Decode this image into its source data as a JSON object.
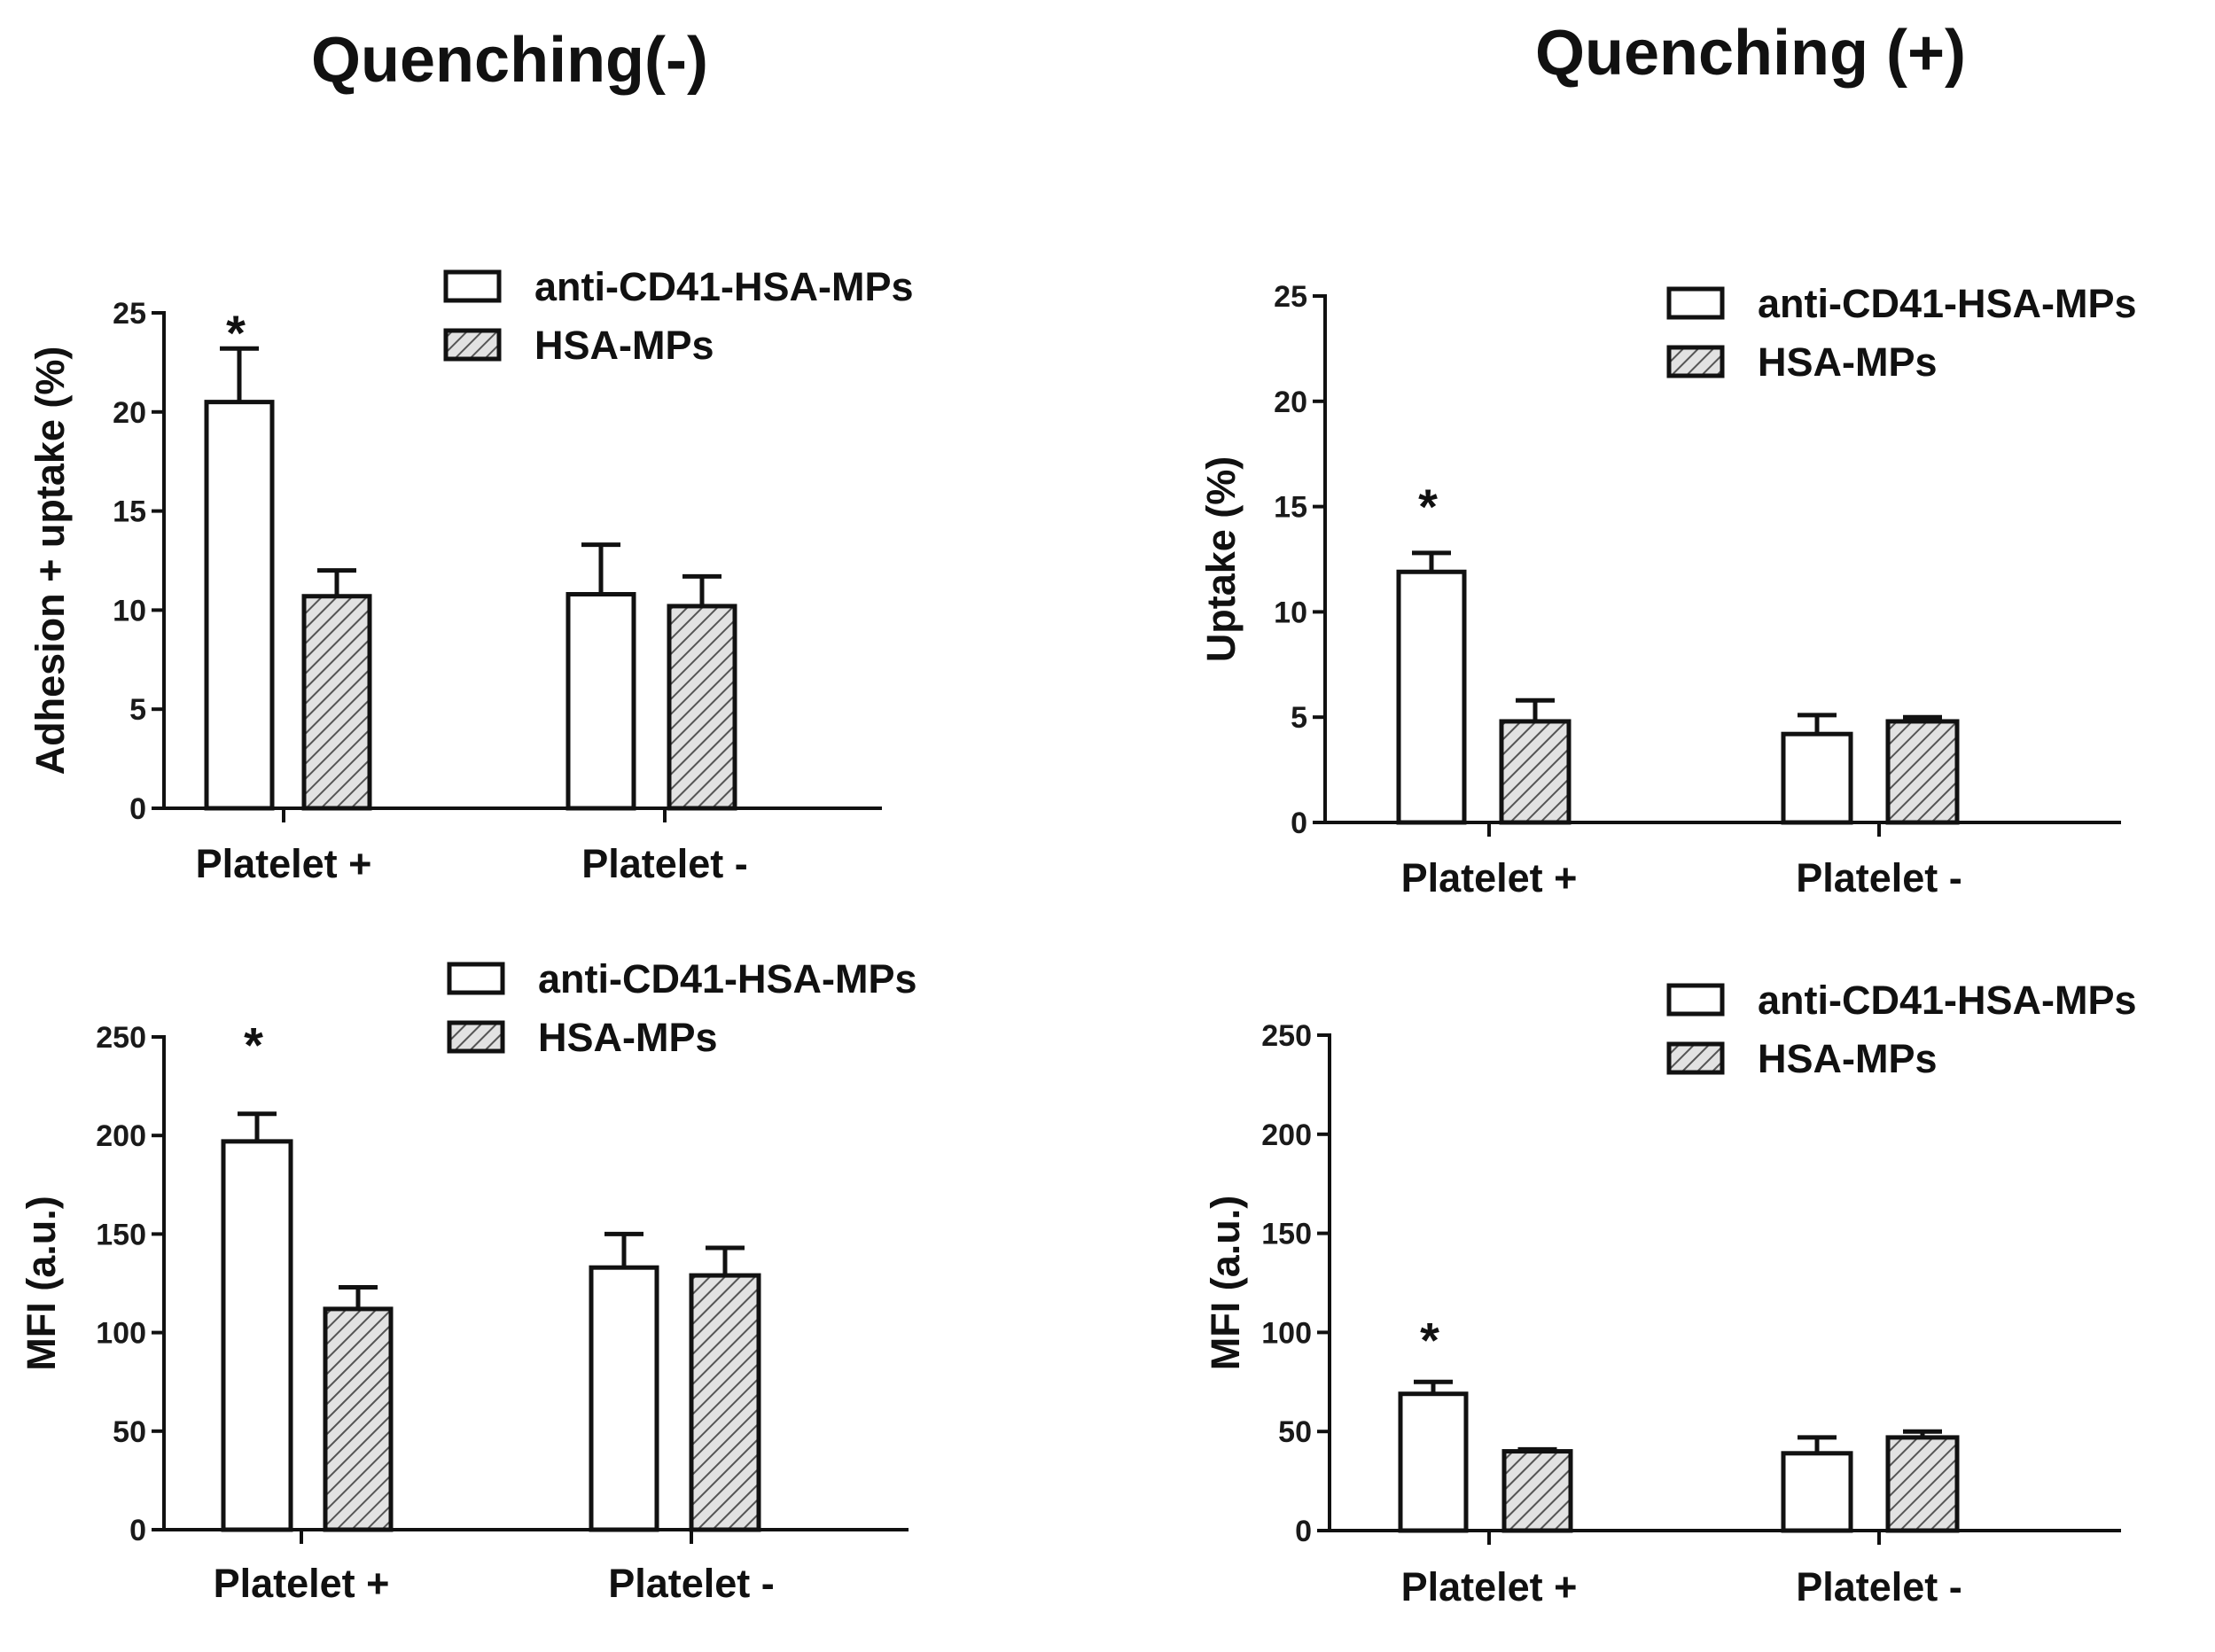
{
  "titles": {
    "left": "Quenching(-)",
    "right": "Quenching (+)"
  },
  "chart_data": [
    {
      "id": "left-top",
      "type": "bar",
      "title": "",
      "xlabel": "",
      "ylabel": "Adhesion + uptake (%)",
      "ylim": [
        0,
        25
      ],
      "ticks": [
        0,
        5,
        10,
        15,
        20,
        25
      ],
      "tick_labels": [
        "0",
        "5",
        "10",
        "15",
        "20",
        "25"
      ],
      "categories": [
        "Platelet +",
        "Platelet -"
      ],
      "series": [
        {
          "name": "anti-CD41-HSA-MPs",
          "values": [
            20.5,
            10.8
          ],
          "errors": [
            2.7,
            2.5
          ],
          "fill": "open"
        },
        {
          "name": "HSA-MPs",
          "values": [
            10.7,
            10.2
          ],
          "errors": [
            1.3,
            1.5
          ],
          "fill": "hatch"
        }
      ],
      "annotations": [
        {
          "text": "*",
          "category": 0,
          "series": 0
        }
      ],
      "legend_position": "top-right"
    },
    {
      "id": "right-top",
      "type": "bar",
      "title": "",
      "xlabel": "",
      "ylabel": "Uptake (%)",
      "ylim": [
        0,
        25
      ],
      "ticks": [
        0,
        5,
        10,
        15,
        20,
        25
      ],
      "tick_labels": [
        "0",
        "5",
        "10",
        "15",
        "20",
        "25"
      ],
      "categories": [
        "Platelet +",
        "Platelet -"
      ],
      "series": [
        {
          "name": "anti-CD41-HSA-MPs",
          "values": [
            11.9,
            4.2
          ],
          "errors": [
            0.9,
            0.9
          ],
          "fill": "open"
        },
        {
          "name": "HSA-MPs",
          "values": [
            4.8,
            4.8
          ],
          "errors": [
            1.0,
            0.2
          ],
          "fill": "hatch"
        }
      ],
      "annotations": [
        {
          "text": "*",
          "category": 0,
          "series": 0
        }
      ],
      "legend_position": "top-right"
    },
    {
      "id": "left-bottom",
      "type": "bar",
      "title": "",
      "xlabel": "",
      "ylabel": "MFI (a.u.)",
      "ylim": [
        0,
        250
      ],
      "ticks": [
        0,
        50,
        100,
        150,
        200,
        250
      ],
      "tick_labels": [
        "0",
        "50",
        "100",
        "150",
        "200",
        "250"
      ],
      "categories": [
        "Platelet +",
        "Platelet -"
      ],
      "series": [
        {
          "name": "anti-CD41-HSA-MPs",
          "values": [
            197,
            133
          ],
          "errors": [
            14,
            17
          ],
          "fill": "open"
        },
        {
          "name": "HSA-MPs",
          "values": [
            112,
            129
          ],
          "errors": [
            11,
            14
          ],
          "fill": "hatch"
        }
      ],
      "annotations": [
        {
          "text": "*",
          "category": 0,
          "series": 0
        }
      ],
      "legend_position": "top-right"
    },
    {
      "id": "right-bottom",
      "type": "bar",
      "title": "",
      "xlabel": "",
      "ylabel": "MFI (a.u.)",
      "ylim": [
        0,
        250
      ],
      "ticks": [
        0,
        50,
        100,
        150,
        200,
        250
      ],
      "tick_labels": [
        "0",
        "50",
        "100",
        "150",
        "200",
        "250"
      ],
      "categories": [
        "Platelet +",
        "Platelet -"
      ],
      "series": [
        {
          "name": "anti-CD41-HSA-MPs",
          "values": [
            69,
            39
          ],
          "errors": [
            6,
            8
          ],
          "fill": "open"
        },
        {
          "name": "HSA-MPs",
          "values": [
            40,
            47
          ],
          "errors": [
            1,
            3
          ],
          "fill": "hatch"
        }
      ],
      "annotations": [
        {
          "text": "*",
          "category": 0,
          "series": 0
        }
      ],
      "legend_position": "top-right"
    }
  ]
}
